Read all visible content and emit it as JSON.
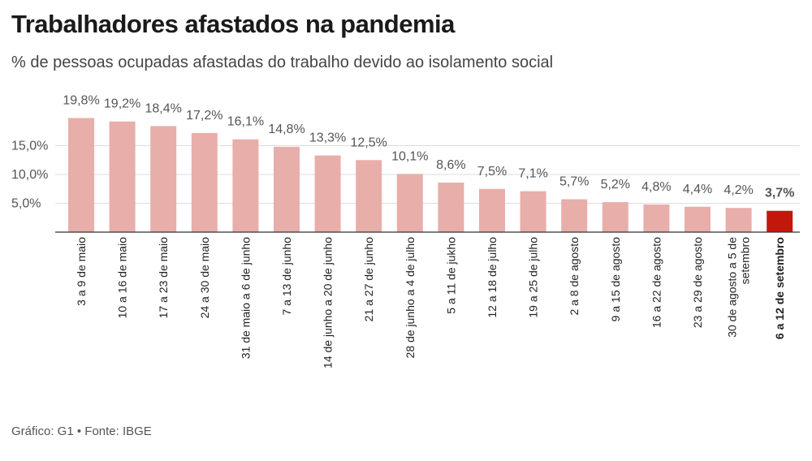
{
  "header": {
    "title": "Trabalhadores afastados na pandemia",
    "subtitle": "% de pessoas ocupadas afastadas do trabalho devido ao isolamento social"
  },
  "footer": {
    "source": "Gráfico: G1 • Fonte: IBGE"
  },
  "colors": {
    "bar": "#e8aeaa",
    "highlight_bar": "#c4170c",
    "grid": "#dddddd",
    "axis": "#333333"
  },
  "chart_data": {
    "type": "bar",
    "title": "Trabalhadores afastados na pandemia",
    "subtitle": "% de pessoas ocupadas afastadas do trabalho devido ao isolamento social",
    "categories": [
      "3 a 9 de maio",
      "10 a 16 de maio",
      "17 a 23 de maio",
      "24 a 30 de maio",
      "31 de maio a 6 de junho",
      "7 a 13 de junho",
      "14 de junho a 20 de junho",
      "21 a 27 de junho",
      "28 de junho a 4 de julho",
      "5 a 11 de jukho",
      "12 a 18 de julho",
      "19 a 25 de julho",
      "2 a 8 de agosto",
      "9 a 15 de agosto",
      "16 a 22 de agosto",
      "23 a 29 de agosto",
      "30 de agosto a 5 de setembro",
      "6 a 12 de setembro"
    ],
    "category_lines": [
      [
        "3 a 9 de maio"
      ],
      [
        "10 a 16 de maio"
      ],
      [
        "17 a 23 de maio"
      ],
      [
        "24 a 30 de maio"
      ],
      [
        "31 de maio a 6 de junho"
      ],
      [
        "7 a 13 de junho"
      ],
      [
        "14 de junho a 20 de junho"
      ],
      [
        "21 a 27 de junho"
      ],
      [
        "28 de junho a 4 de julho"
      ],
      [
        "5 a 11 de jukho"
      ],
      [
        "12 a 18 de julho"
      ],
      [
        "19 a 25 de julho"
      ],
      [
        "2 a 8 de agosto"
      ],
      [
        "9 a 15 de agosto"
      ],
      [
        "16 a 22 de agosto"
      ],
      [
        "23 a 29 de agosto"
      ],
      [
        "30 de agosto a 5 de",
        "setembro"
      ],
      [
        "6 a 12 de setembro"
      ]
    ],
    "values": [
      19.8,
      19.2,
      18.4,
      17.2,
      16.1,
      14.8,
      13.3,
      12.5,
      10.1,
      8.6,
      7.5,
      7.1,
      5.7,
      5.2,
      4.8,
      4.4,
      4.2,
      3.7
    ],
    "value_labels": [
      "19,8%",
      "19,2%",
      "18,4%",
      "17,2%",
      "16,1%",
      "14,8%",
      "13,3%",
      "12,5%",
      "10,1%",
      "8,6%",
      "7,5%",
      "7,1%",
      "5,7%",
      "5,2%",
      "4,8%",
      "4,4%",
      "4,2%",
      "3,7%"
    ],
    "highlight_index": 17,
    "yticks": [
      5,
      10,
      15
    ],
    "ytick_labels": [
      "5,0%",
      "10,0%",
      "15,0%"
    ],
    "ylim": [
      0,
      20
    ],
    "grid": true,
    "xlabel": "",
    "ylabel": ""
  }
}
